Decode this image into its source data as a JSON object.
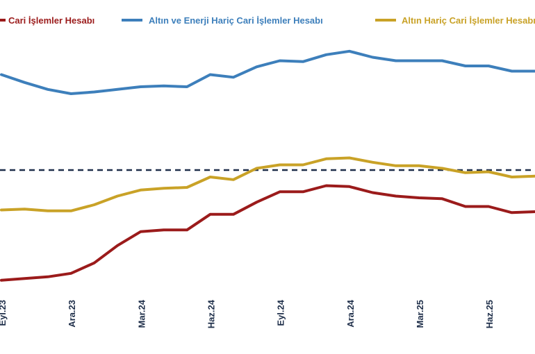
{
  "chart_data": {
    "type": "line",
    "title": "",
    "xlabel": "",
    "ylabel": "",
    "x": [
      "Eyl.23",
      "Eki.23",
      "Kas.23",
      "Ara.23",
      "Oca.24",
      "Şub.24",
      "Mar.24",
      "Nis.24",
      "May.24",
      "Haz.24",
      "Tem.24",
      "Ağu.24",
      "Eyl.24",
      "Eki.24",
      "Kas.24",
      "Ara.24",
      "Oca.25",
      "Şub.25",
      "Mar.25",
      "Nis.25",
      "May.25",
      "Haz.25",
      "Tem.25",
      "Ağu.25"
    ],
    "tick_labels": [
      {
        "index": 0,
        "label": "Eyl.23"
      },
      {
        "index": 3,
        "label": "Ara.23"
      },
      {
        "index": 6,
        "label": "Mar.24"
      },
      {
        "index": 9,
        "label": "Haz.24"
      },
      {
        "index": 12,
        "label": "Eyl.24"
      },
      {
        "index": 15,
        "label": "Ara.24"
      },
      {
        "index": 18,
        "label": "Mar.25"
      },
      {
        "index": 21,
        "label": "Haz.25"
      }
    ],
    "ylim": [
      -70,
      90
    ],
    "reference_line": {
      "value": 0,
      "style": "dashed",
      "color": "#1f2f4a"
    },
    "series": [
      {
        "name": "Cari İşlemler Hesabı",
        "color": "#9b1b1b",
        "values": [
          -63.5,
          -62.5,
          -61.5,
          -59.5,
          -53.5,
          -43.5,
          -35.5,
          -34.5,
          -34.5,
          -25.5,
          -25.5,
          -18.5,
          -12.5,
          -12.5,
          -9.0,
          -9.5,
          -13.0,
          -15.0,
          -16.0,
          -16.5,
          -21.0,
          -21.0,
          -24.5,
          -24.0
        ]
      },
      {
        "name": "Altın ve Enerji Hariç Cari İşlemler Hesabı",
        "color": "#3d7fbb",
        "values": [
          55.0,
          50.5,
          46.5,
          44.0,
          45.0,
          46.5,
          48.0,
          48.5,
          48.0,
          55.0,
          53.5,
          59.5,
          63.0,
          62.5,
          66.5,
          68.5,
          65.0,
          63.0,
          63.0,
          63.0,
          60.0,
          60.0,
          57.0,
          57.0
        ]
      },
      {
        "name": "Altın Hariç Cari İşlemler Hesabı",
        "color": "#c9a227",
        "values": [
          -23.0,
          -22.5,
          -23.5,
          -23.5,
          -20.0,
          -15.0,
          -11.5,
          -10.5,
          -10.0,
          -4.0,
          -5.5,
          1.0,
          3.0,
          3.0,
          6.5,
          7.0,
          4.5,
          2.5,
          2.5,
          1.0,
          -1.5,
          -1.0,
          -4.0,
          -3.5
        ]
      }
    ]
  }
}
